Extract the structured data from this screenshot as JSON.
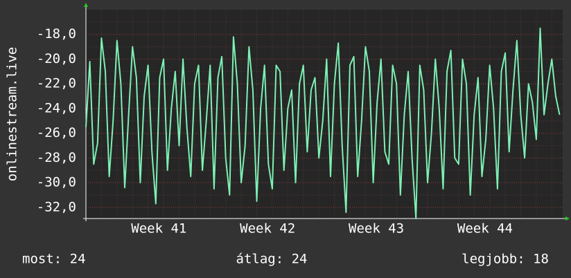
{
  "chart_data": {
    "type": "line",
    "ylabel": "onlinestream.live",
    "xlim": [
      0,
      30.7
    ],
    "ylim": [
      -32.9,
      -16.0
    ],
    "xticks": [
      {
        "value": 4.7,
        "label": "Week 41"
      },
      {
        "value": 11.7,
        "label": "Week 42"
      },
      {
        "value": 18.7,
        "label": "Week 43"
      },
      {
        "value": 25.7,
        "label": "Week 44"
      }
    ],
    "yticks": [
      {
        "value": -32,
        "label": "-32,0"
      },
      {
        "value": -30,
        "label": "-30,0"
      },
      {
        "value": -28,
        "label": "-28,0"
      },
      {
        "value": -26,
        "label": "-26,0"
      },
      {
        "value": -24,
        "label": "-24,0"
      },
      {
        "value": -22,
        "label": "-22,0"
      },
      {
        "value": -20,
        "label": "-20,0"
      },
      {
        "value": -18,
        "label": "-18,0"
      }
    ],
    "yminorticks": [
      -32,
      -31,
      -30,
      -29,
      -28,
      -27,
      -26,
      -25,
      -24,
      -23,
      -22,
      -21,
      -20,
      -19,
      -18,
      -17
    ],
    "xminorticks": [
      1,
      2,
      3,
      4,
      5,
      6,
      7,
      8,
      9,
      10,
      11,
      12,
      13,
      14,
      15,
      16,
      17,
      18,
      19,
      20,
      21,
      22,
      23,
      24,
      25,
      26,
      27,
      28,
      29,
      30
    ],
    "grid": true,
    "series": [
      {
        "color": "#7df0b4",
        "x": [
          0,
          0.25,
          0.5,
          0.75,
          1,
          1.25,
          1.5,
          1.75,
          2,
          2.25,
          2.5,
          2.75,
          3,
          3.25,
          3.5,
          3.75,
          4,
          4.25,
          4.5,
          4.75,
          5,
          5.25,
          5.5,
          5.75,
          6,
          6.25,
          6.5,
          6.75,
          7,
          7.25,
          7.5,
          7.75,
          8,
          8.25,
          8.5,
          8.75,
          9,
          9.25,
          9.5,
          9.75,
          10,
          10.25,
          10.5,
          10.75,
          11,
          11.25,
          11.5,
          11.75,
          12,
          12.25,
          12.5,
          12.75,
          13,
          13.25,
          13.5,
          13.75,
          14,
          14.25,
          14.5,
          14.75,
          15,
          15.25,
          15.5,
          15.75,
          16,
          16.25,
          16.5,
          16.75,
          17,
          17.25,
          17.5,
          17.75,
          18,
          18.25,
          18.5,
          18.75,
          19,
          19.25,
          19.5,
          19.75,
          20,
          20.25,
          20.5,
          20.75,
          21,
          21.25,
          21.5,
          21.75,
          22,
          22.25,
          22.5,
          22.75,
          23,
          23.25,
          23.5,
          23.75,
          24,
          24.25,
          24.5,
          24.75,
          25,
          25.25,
          25.5,
          25.75,
          26,
          26.25,
          26.5,
          26.75,
          27,
          27.25,
          27.5,
          27.75,
          28,
          28.25,
          28.5,
          28.75,
          29,
          29.25,
          29.5,
          29.75,
          30,
          30.25,
          30.5
        ],
        "values": [
          -25.5,
          -20.2,
          -28.5,
          -26.8,
          -18.3,
          -21.0,
          -29.5,
          -25.0,
          -18.5,
          -22.0,
          -30.4,
          -24.5,
          -19.0,
          -21.5,
          -30.0,
          -23.0,
          -20.5,
          -27.5,
          -31.7,
          -21.5,
          -20.0,
          -29.0,
          -24.0,
          -21.0,
          -27.0,
          -20.0,
          -25.5,
          -29.5,
          -22.0,
          -20.5,
          -29.0,
          -25.0,
          -20.5,
          -30.5,
          -21.5,
          -19.8,
          -28.0,
          -31.0,
          -18.2,
          -22.0,
          -30.0,
          -27.0,
          -19.0,
          -22.5,
          -31.5,
          -24.0,
          -20.5,
          -28.5,
          -30.5,
          -20.5,
          -21.0,
          -29.0,
          -24.0,
          -22.5,
          -30.0,
          -22.0,
          -20.5,
          -27.5,
          -22.5,
          -21.5,
          -28.0,
          -25.0,
          -20.0,
          -29.5,
          -22.0,
          -18.7,
          -27.0,
          -32.4,
          -20.5,
          -19.8,
          -29.5,
          -25.0,
          -19.0,
          -21.0,
          -30.0,
          -23.5,
          -20.0,
          -27.5,
          -28.5,
          -20.5,
          -22.0,
          -31.0,
          -24.5,
          -21.0,
          -28.0,
          -32.9,
          -20.5,
          -22.5,
          -30.0,
          -26.0,
          -20.0,
          -24.0,
          -30.5,
          -21.0,
          -19.3,
          -28.0,
          -28.5,
          -20.0,
          -22.0,
          -31.0,
          -24.5,
          -21.5,
          -29.5,
          -26.5,
          -20.5,
          -24.0,
          -30.5,
          -21.0,
          -19.5,
          -27.5,
          -22.5,
          -18.5,
          -24.5,
          -28.0,
          -22.0,
          -23.5,
          -26.5,
          -17.5,
          -24.5,
          -22.0,
          -20.0,
          -23.0,
          -24.5
        ]
      }
    ],
    "stats": [
      "most: 24",
      "átlag: 24",
      "legjobb: 18"
    ]
  }
}
